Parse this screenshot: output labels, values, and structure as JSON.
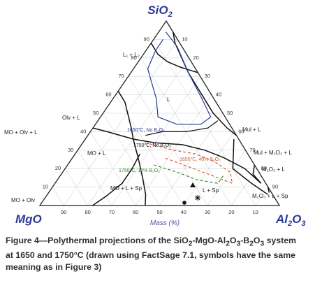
{
  "chart_data": {
    "type": "ternary",
    "apex_labels": {
      "top": {
        "main": "SiO",
        "sub": "2"
      },
      "left": {
        "main": "MgO",
        "sub": ""
      },
      "right": {
        "main": "Al",
        "sub": "2",
        "mid": "O",
        "sub2": "3"
      }
    },
    "axis_title": "Mass (%)",
    "ticks": [
      "10",
      "20",
      "30",
      "40",
      "50",
      "60",
      "70",
      "80",
      "90"
    ],
    "phase_fields": [
      {
        "label": "L₁ + L₂"
      },
      {
        "label": "L"
      },
      {
        "label": "Olv + L"
      },
      {
        "label": "MO + Olv + L"
      },
      {
        "label": "MO + L"
      },
      {
        "label": "MO + L + Sp"
      },
      {
        "label": "L + Sp"
      },
      {
        "label": "Mul + L"
      },
      {
        "label": "Mul + M₂O₃ + L"
      },
      {
        "label": "M₂O₃ + L"
      },
      {
        "label": "M₂O₃ + L + Sp"
      },
      {
        "label": "MO + Olv"
      }
    ],
    "series": [
      {
        "name": "1650°C, No B₂O₃",
        "color": "#2b3a97",
        "style": "solid"
      },
      {
        "name": "1750°C, No B₂O₃",
        "color": "#111111",
        "style": "solid"
      },
      {
        "name": "1650°C, 40% B₂O₃",
        "color": "#d2603a",
        "style": "dashed"
      },
      {
        "name": "1750°C, 10% B₂O₃",
        "color": "#2f8a2f",
        "style": "dashed"
      }
    ],
    "symbols": [
      "triangle",
      "circle",
      "asterisk"
    ]
  },
  "caption": {
    "line1_a": "Figure 4—Polythermal projections of the SiO",
    "line1_b": "-MgO-Al",
    "line1_c": "O",
    "line1_d": "-B",
    "line1_e": "O",
    "line1_f": " system",
    "sub2": "2",
    "sub3": "3",
    "line2": "at 1650 and 1750°C (drawn using FactSage 7.1, symbols have the same",
    "line3": "meaning as in Figure 3)"
  }
}
